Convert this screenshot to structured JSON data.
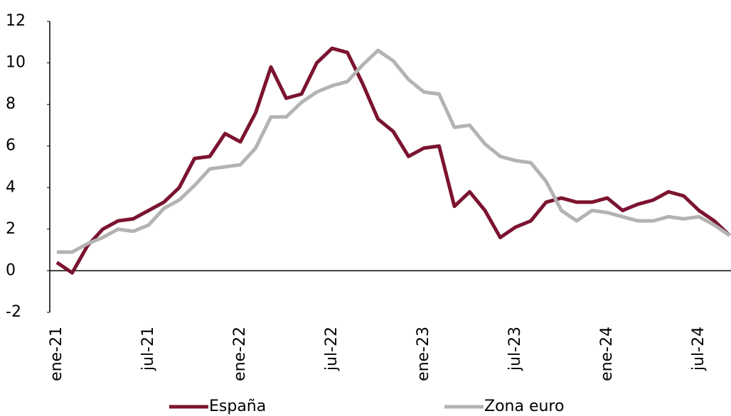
{
  "chart_data": {
    "type": "line",
    "categories": [
      "ene-21",
      null,
      null,
      null,
      null,
      null,
      "jul-21",
      null,
      null,
      null,
      null,
      null,
      "ene-22",
      null,
      null,
      null,
      null,
      null,
      "jul-22",
      null,
      null,
      null,
      null,
      null,
      "ene-23",
      null,
      null,
      null,
      null,
      null,
      "jul-23",
      null,
      null,
      null,
      null,
      null,
      "ene-24",
      null,
      null,
      null,
      null,
      null,
      "jul-24",
      null,
      null
    ],
    "series": [
      {
        "name": "España",
        "color": "#7b1430",
        "values": [
          0.4,
          -0.1,
          1.2,
          2.0,
          2.4,
          2.5,
          2.9,
          3.3,
          4.0,
          5.4,
          5.5,
          6.6,
          6.2,
          7.6,
          9.8,
          8.3,
          8.5,
          10.0,
          10.7,
          10.5,
          9.0,
          7.3,
          6.7,
          5.5,
          5.9,
          6.0,
          3.1,
          3.8,
          2.9,
          1.6,
          2.1,
          2.4,
          3.3,
          3.5,
          3.3,
          3.3,
          3.5,
          2.9,
          3.2,
          3.4,
          3.8,
          3.6,
          2.9,
          2.4,
          1.7
        ]
      },
      {
        "name": "Zona euro",
        "color": "#b3b3b3",
        "values": [
          0.9,
          0.9,
          1.3,
          1.6,
          2.0,
          1.9,
          2.2,
          3.0,
          3.4,
          4.1,
          4.9,
          5.0,
          5.1,
          5.9,
          7.4,
          7.4,
          8.1,
          8.6,
          8.9,
          9.1,
          9.9,
          10.6,
          10.1,
          9.2,
          8.6,
          8.5,
          6.9,
          7.0,
          6.1,
          5.5,
          5.3,
          5.2,
          4.3,
          2.9,
          2.4,
          2.9,
          2.8,
          2.6,
          2.4,
          2.4,
          2.6,
          2.5,
          2.6,
          2.2,
          1.7
        ]
      }
    ],
    "ylim": [
      -2,
      12
    ],
    "yticks": [
      -2,
      0,
      2,
      4,
      6,
      8,
      10,
      12
    ],
    "legend": "bottom"
  }
}
